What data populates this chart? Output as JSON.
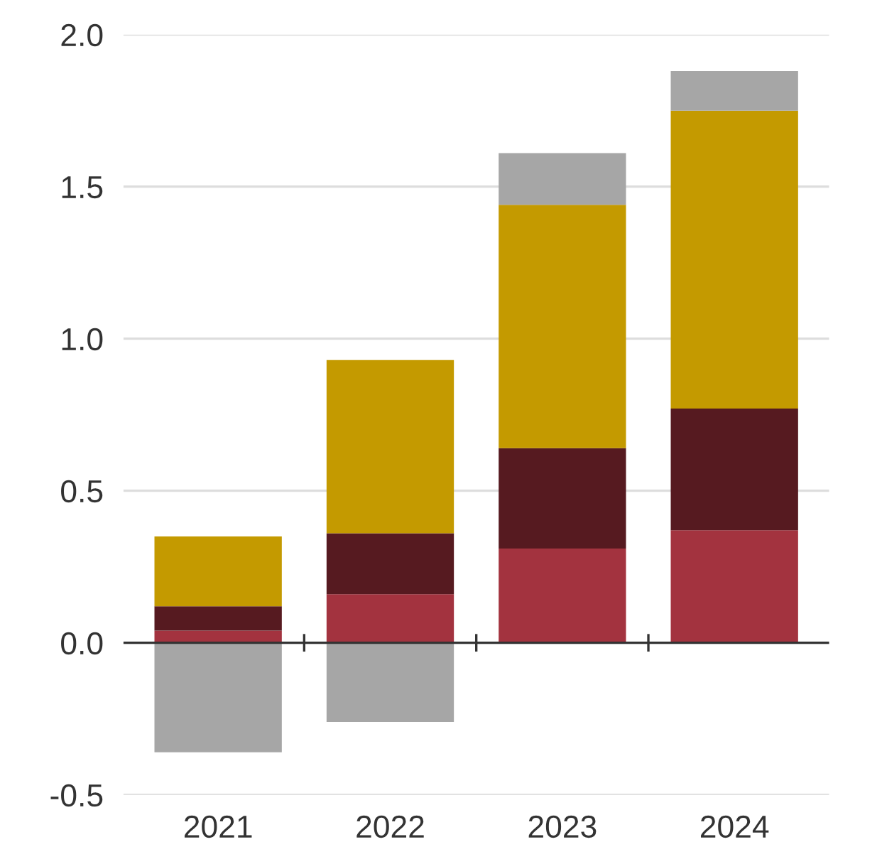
{
  "chart_data": {
    "type": "bar",
    "stacked": true,
    "categories": [
      "2021",
      "2022",
      "2023",
      "2024"
    ],
    "series": [
      {
        "color": "#a3333f",
        "values": [
          0.04,
          0.16,
          0.31,
          0.37
        ]
      },
      {
        "color": "#561a20",
        "values": [
          0.08,
          0.2,
          0.33,
          0.4
        ]
      },
      {
        "color": "#c49a00",
        "values": [
          0.23,
          0.57,
          0.8,
          0.98
        ]
      },
      {
        "color": "#a6a6a6",
        "values": [
          -0.36,
          -0.26,
          0.17,
          0.13
        ]
      }
    ],
    "ylim": [
      -0.5,
      2.0
    ],
    "yticks": [
      {
        "value": -0.5,
        "label": "-0.5"
      },
      {
        "value": 0.0,
        "label": "0.0"
      },
      {
        "value": 0.5,
        "label": "0.5"
      },
      {
        "value": 1.0,
        "label": "1.0"
      },
      {
        "value": 1.5,
        "label": "1.5"
      },
      {
        "value": 2.0,
        "label": "2.0"
      }
    ],
    "grid": "y",
    "legend": false
  }
}
